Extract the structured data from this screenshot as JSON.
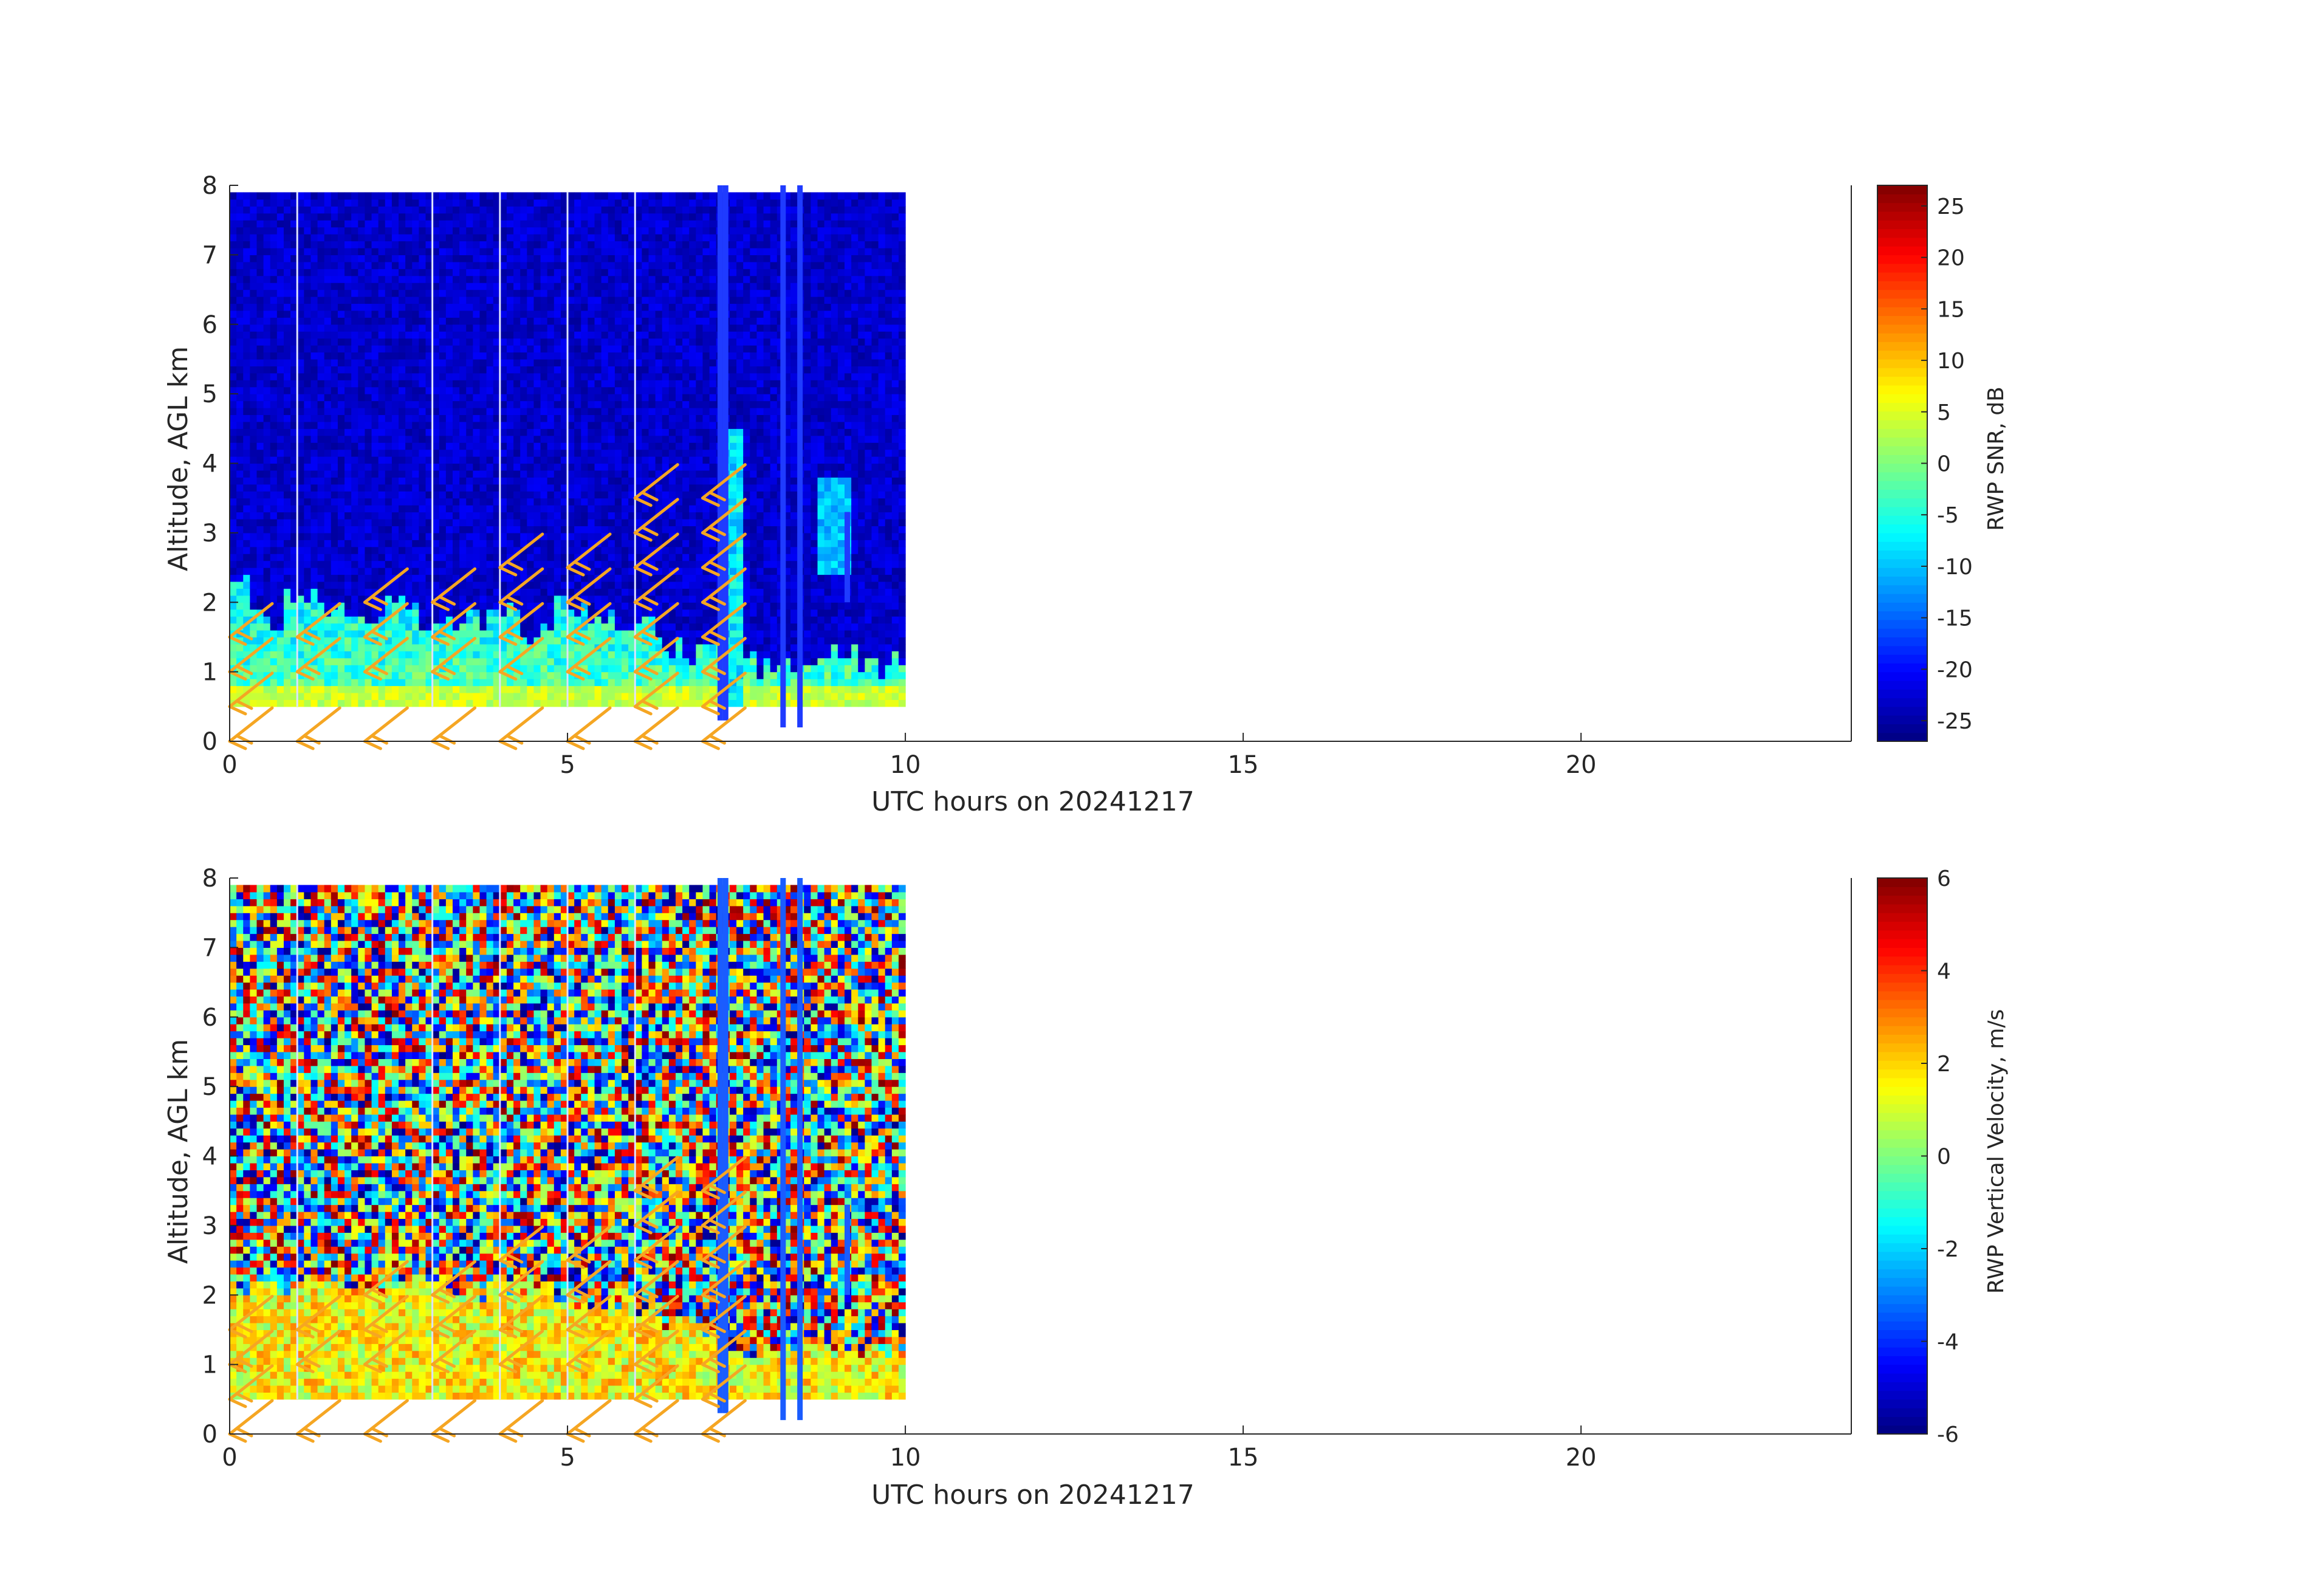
{
  "chart_data": [
    {
      "type": "heatmap",
      "title": "",
      "xlabel": "UTC hours on 20241217",
      "ylabel": "Altitude, AGL km",
      "xlim": [
        0,
        24
      ],
      "ylim": [
        0,
        8
      ],
      "xticks": [
        0,
        5,
        10,
        15,
        20
      ],
      "yticks": [
        0,
        1,
        2,
        3,
        4,
        5,
        6,
        7,
        8
      ],
      "colorbar": {
        "label": "RWP SNR, dB",
        "range": [
          -27,
          27
        ],
        "ticks": [
          -25,
          -20,
          -15,
          -10,
          -5,
          0,
          5,
          10,
          15,
          20,
          25
        ],
        "colormap": "jet"
      },
      "data_extent": {
        "x": [
          0,
          10
        ],
        "y": [
          0.5,
          7.9
        ]
      },
      "field_description_values": {
        "background_value": -23,
        "boundary_layer_top_km": [
          2.2,
          1.7,
          2.0,
          1.9,
          1.8,
          1.9,
          1.6,
          1.7,
          1.8,
          1.5,
          1.9,
          1.7,
          1.6,
          1.3,
          1.2,
          1.1,
          1.0,
          1.1,
          1.2,
          1.0,
          1.1
        ],
        "boundary_layer_value": -3,
        "surface_layer_value": 4
      },
      "gap_lines_hours": [
        1.0,
        3.0,
        4.0,
        5.0,
        6.0
      ],
      "wind_barbs": {
        "color": "#F5A623",
        "times": [
          0,
          1,
          2,
          3,
          4,
          5,
          6,
          7
        ],
        "altitudes_by_time": [
          [
            0,
            0.5,
            1.0,
            1.5
          ],
          [
            0,
            1.0,
            1.5
          ],
          [
            0,
            1.0,
            1.5,
            2.0
          ],
          [
            0,
            1.0,
            1.5,
            2.0
          ],
          [
            0,
            1.0,
            1.5,
            2.0,
            2.5
          ],
          [
            0,
            1.0,
            1.5,
            2.0,
            2.5
          ],
          [
            0,
            0.5,
            1.0,
            1.5,
            2.0,
            2.5,
            3.0,
            3.5
          ],
          [
            0,
            0.5,
            1.0,
            1.5,
            2.0,
            2.5,
            3.0,
            3.5
          ]
        ]
      }
    },
    {
      "type": "heatmap",
      "title": "",
      "xlabel": "UTC hours on 20241217",
      "ylabel": "Altitude, AGL km",
      "xlim": [
        0,
        24
      ],
      "ylim": [
        0,
        8
      ],
      "xticks": [
        0,
        5,
        10,
        15,
        20
      ],
      "yticks": [
        0,
        1,
        2,
        3,
        4,
        5,
        6,
        7,
        8
      ],
      "colorbar": {
        "label": "RWP Vertical Velocity, m/s",
        "range": [
          -6,
          6
        ],
        "ticks": [
          -6,
          -4,
          -2,
          0,
          2,
          4,
          6
        ],
        "colormap": "jet"
      },
      "data_extent": {
        "x": [
          0,
          10
        ],
        "y": [
          0.5,
          7.9
        ]
      },
      "field_description_values": {
        "background": "noise",
        "boundary_layer_top_km": [
          2.1,
          2.1,
          2.1,
          2.2,
          2.0,
          2.1,
          2.2,
          2.0,
          2.1,
          2.0,
          1.9,
          1.8,
          1.8,
          1.6,
          1.5,
          1.2,
          1.2,
          1.3,
          1.2,
          1.2,
          1.2
        ],
        "boundary_layer_value": 1.5
      },
      "gap_lines_hours": [
        1.0,
        3.0,
        4.0,
        5.0,
        6.0
      ],
      "wind_barbs": {
        "color": "#F5A623",
        "times": [
          0,
          1,
          2,
          3,
          4,
          5,
          6,
          7
        ],
        "altitudes_by_time": [
          [
            0,
            0.5,
            1.0,
            1.5
          ],
          [
            0,
            1.0,
            1.5
          ],
          [
            0,
            1.0,
            1.5,
            2.0
          ],
          [
            0,
            1.0,
            1.5,
            2.0
          ],
          [
            0,
            1.0,
            1.5,
            2.0,
            2.5
          ],
          [
            0,
            1.0,
            1.5,
            2.0,
            2.5
          ],
          [
            0,
            0.5,
            1.0,
            1.5,
            2.0,
            2.5,
            3.0,
            3.5
          ],
          [
            0,
            0.5,
            1.0,
            1.5,
            2.0,
            2.5,
            3.0,
            3.5
          ]
        ]
      }
    }
  ]
}
